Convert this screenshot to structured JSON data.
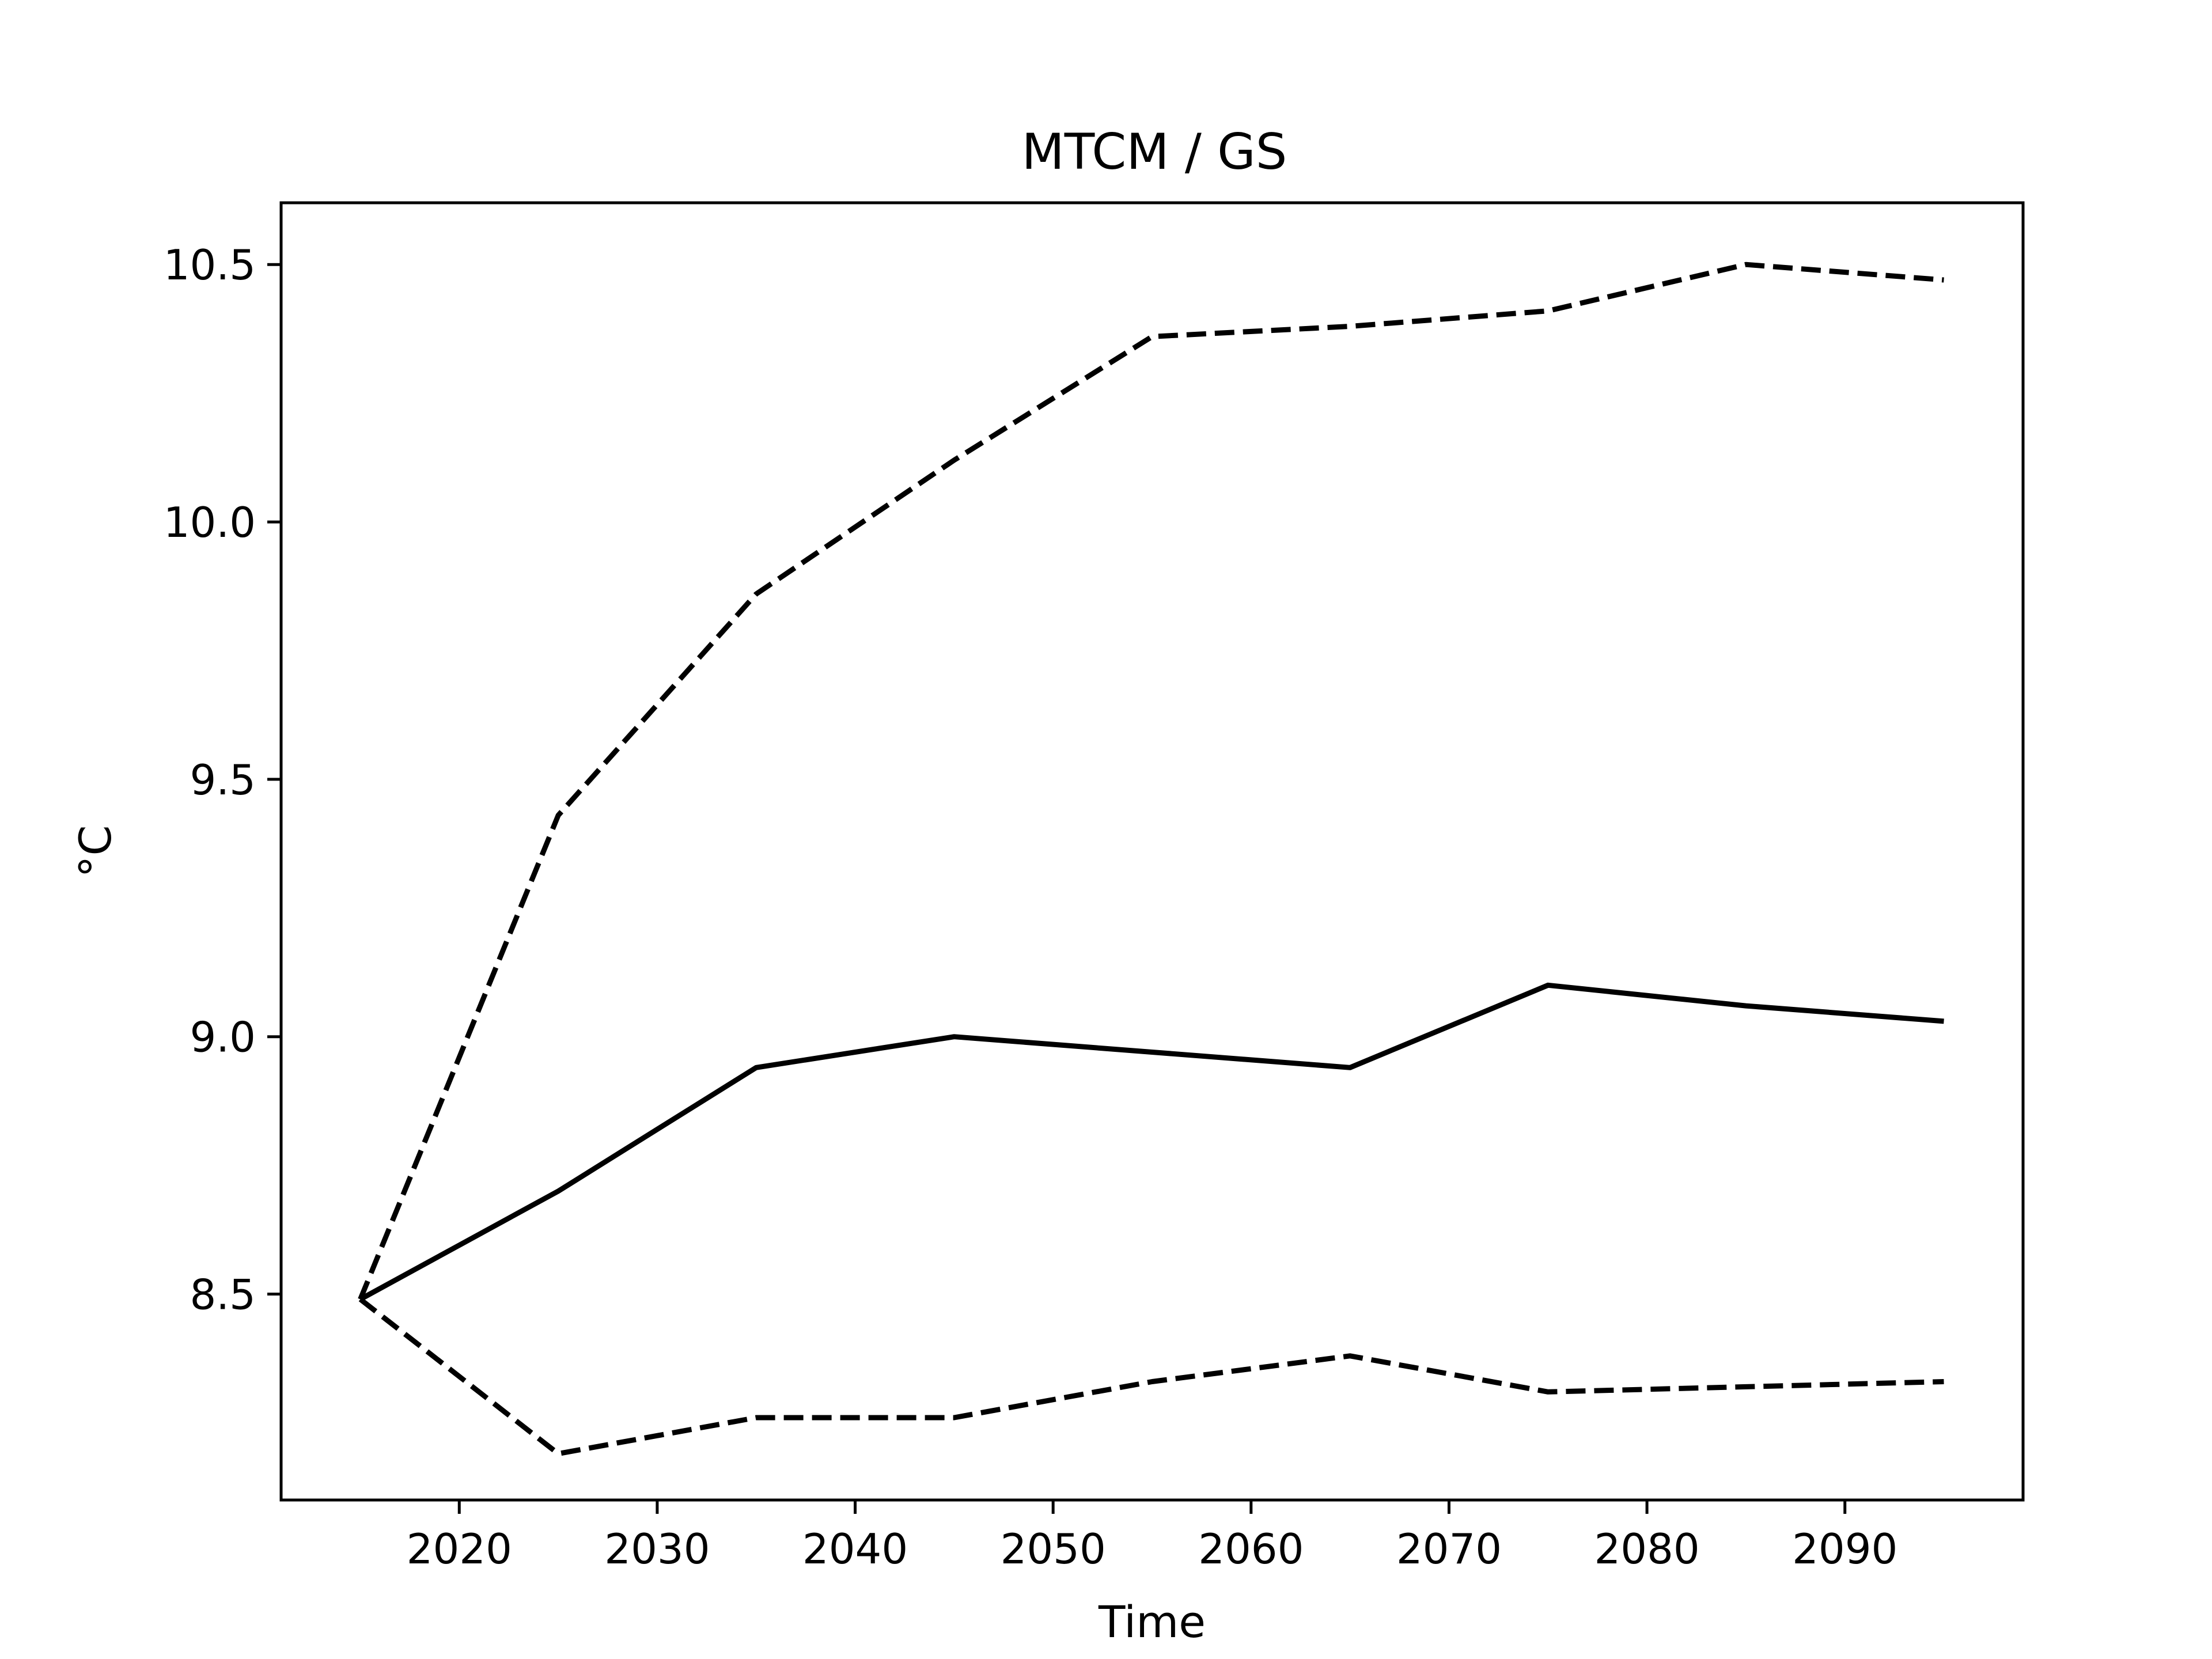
{
  "chart_data": {
    "type": "line",
    "title": "MTCM / GS",
    "xlabel": "Time",
    "ylabel": "°C",
    "xlim": [
      2011,
      2099
    ],
    "ylim": [
      8.1,
      10.62
    ],
    "x_ticks": [
      2020,
      2030,
      2040,
      2050,
      2060,
      2070,
      2080,
      2090
    ],
    "y_ticks": [
      8.5,
      9.0,
      9.5,
      10.0,
      10.5
    ],
    "y_tick_labels": [
      "8.5",
      "9.0",
      "9.5",
      "10.0",
      "10.5"
    ],
    "grid": false,
    "legend": "none",
    "x": [
      2015,
      2025,
      2035,
      2045,
      2055,
      2065,
      2075,
      2085,
      2095
    ],
    "series": [
      {
        "style": "solid",
        "color": "#000000",
        "values": [
          8.49,
          8.7,
          8.94,
          9.0,
          8.97,
          8.94,
          9.1,
          9.06,
          9.03
        ]
      },
      {
        "style": "dashed",
        "color": "#000000",
        "values": [
          8.49,
          9.43,
          9.86,
          10.12,
          10.36,
          10.38,
          10.41,
          10.5,
          10.47
        ]
      },
      {
        "style": "dashed",
        "color": "#000000",
        "values": [
          8.49,
          8.19,
          8.26,
          8.26,
          8.33,
          8.38,
          8.31,
          8.32,
          8.33
        ]
      }
    ]
  }
}
